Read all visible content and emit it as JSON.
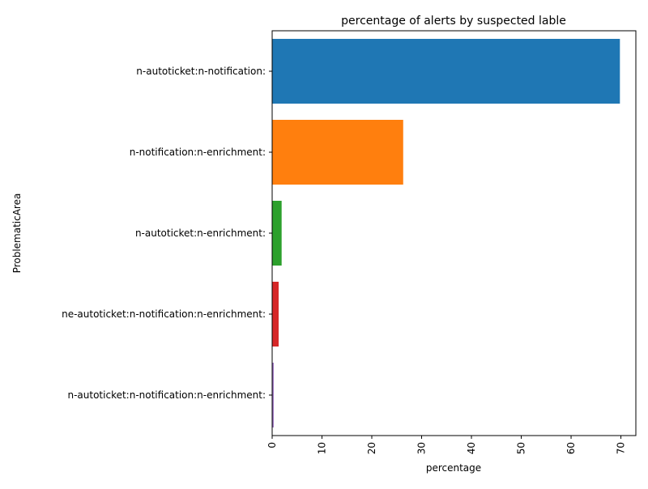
{
  "chart_data": {
    "type": "bar",
    "orientation": "horizontal",
    "title": "percentage of alerts by suspected lable",
    "xlabel": "percentage",
    "ylabel": "ProblematicArea",
    "xlim": [
      0,
      73
    ],
    "xticks": [
      0,
      10,
      20,
      30,
      40,
      50,
      60,
      70
    ],
    "grid": false,
    "categories": [
      "n-autoticket:n-notification:",
      "n-notification:n-enrichment:",
      "n-autoticket:n-enrichment:",
      "ne-autoticket:n-notification:n-enrichment:",
      "n-autoticket:n-notification:n-enrichment:"
    ],
    "values": [
      69.8,
      26.3,
      1.9,
      1.3,
      0.3
    ],
    "colors": [
      "#1f77b4",
      "#ff7f0e",
      "#2ca02c",
      "#d62728",
      "#9467bd"
    ]
  }
}
